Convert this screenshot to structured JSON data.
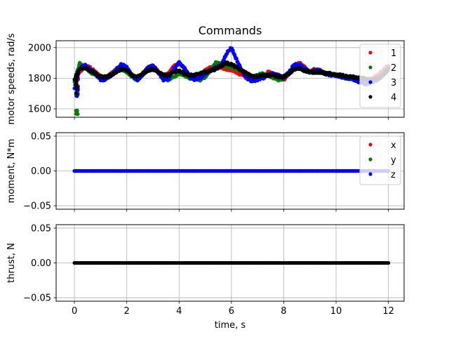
{
  "chart_data": {
    "title": "Commands",
    "x": [
      0,
      0.2,
      0.4,
      0.6,
      0.8,
      1.0,
      1.2,
      1.4,
      1.6,
      1.8,
      2.0,
      2.2,
      2.4,
      2.6,
      2.8,
      3.0,
      3.2,
      3.4,
      3.6,
      3.8,
      4.0,
      4.2,
      4.4,
      4.6,
      4.8,
      5.0,
      5.2,
      5.4,
      5.6,
      5.8,
      6.0,
      6.2,
      6.4,
      6.6,
      6.8,
      7.0,
      7.2,
      7.4,
      7.6,
      7.8,
      8.0,
      8.2,
      8.4,
      8.6,
      8.8,
      9.0,
      9.2,
      9.4,
      9.6,
      9.8,
      10.0,
      10.2,
      10.4,
      10.6,
      10.8,
      11.0,
      11.2,
      11.4,
      11.6,
      11.8,
      12.0
    ],
    "xlabel": "time, s",
    "xlim": [
      -0.7,
      12.6
    ],
    "xticks": [
      "0",
      "2",
      "4",
      "6",
      "8",
      "10",
      "12"
    ],
    "panels": [
      {
        "type": "scatter",
        "ylabel": "motor speeds, rad/s",
        "ylim": [
          1545,
          2045
        ],
        "yticks": [
          "1600",
          "1800",
          "2000"
        ],
        "legend_position": "upper right",
        "series": [
          {
            "name": "1",
            "color": "#ff0000",
            "values": [
              1790,
              1840,
              1880,
              1870,
              1840,
              1810,
              1805,
              1830,
              1860,
              1880,
              1860,
              1820,
              1800,
              1830,
              1870,
              1880,
              1850,
              1810,
              1830,
              1880,
              1900,
              1860,
              1810,
              1800,
              1820,
              1850,
              1870,
              1890,
              1870,
              1860,
              1850,
              1840,
              1820,
              1800,
              1790,
              1800,
              1820,
              1840,
              1830,
              1810,
              1790,
              1830,
              1880,
              1900,
              1870,
              1840,
              1860,
              1850,
              1830,
              1830,
              1820,
              1810,
              1800,
              1800,
              1790,
              1790,
              1790,
              1800,
              1820,
              1850,
              1880
            ]
          },
          {
            "name": "2",
            "color": "#008000",
            "values": [
              1780,
              1900,
              1870,
              1840,
              1820,
              1800,
              1800,
              1820,
              1850,
              1860,
              1840,
              1810,
              1790,
              1820,
              1860,
              1870,
              1840,
              1800,
              1790,
              1810,
              1830,
              1820,
              1800,
              1800,
              1790,
              1810,
              1850,
              1900,
              1890,
              1880,
              1870,
              1860,
              1850,
              1830,
              1810,
              1820,
              1830,
              1820,
              1800,
              1790,
              1800,
              1830,
              1860,
              1870,
              1850,
              1840,
              1840,
              1840,
              1830,
              1830,
              1820,
              1810,
              1800,
              1800,
              1790,
              1790,
              1780,
              1780,
              1790,
              1820,
              1860
            ]
          },
          {
            "name": "3",
            "color": "#0000ff",
            "values": [
              1740,
              1860,
              1890,
              1860,
              1830,
              1790,
              1790,
              1820,
              1860,
              1890,
              1870,
              1820,
              1790,
              1820,
              1870,
              1880,
              1840,
              1790,
              1800,
              1860,
              1900,
              1870,
              1810,
              1790,
              1800,
              1830,
              1850,
              1870,
              1880,
              1960,
              2000,
              1920,
              1850,
              1800,
              1780,
              1790,
              1800,
              1820,
              1830,
              1820,
              1800,
              1840,
              1890,
              1890,
              1860,
              1840,
              1850,
              1850,
              1830,
              1820,
              1820,
              1810,
              1800,
              1800,
              1780,
              1770,
              1760,
              1780,
              1800,
              1830,
              1870
            ]
          },
          {
            "name": "4",
            "color": "#000000",
            "values": [
              1790,
              1860,
              1870,
              1850,
              1830,
              1810,
              1810,
              1820,
              1840,
              1860,
              1850,
              1820,
              1810,
              1830,
              1850,
              1860,
              1840,
              1820,
              1820,
              1840,
              1850,
              1830,
              1820,
              1820,
              1830,
              1840,
              1850,
              1860,
              1880,
              1900,
              1890,
              1870,
              1850,
              1830,
              1810,
              1810,
              1820,
              1820,
              1820,
              1810,
              1810,
              1830,
              1860,
              1860,
              1850,
              1840,
              1840,
              1840,
              1830,
              1830,
              1820,
              1820,
              1810,
              1810,
              1800,
              1800,
              1790,
              1790,
              1800,
              1820,
              1860
            ]
          }
        ]
      },
      {
        "type": "scatter",
        "ylabel": "moment, N*m",
        "ylim": [
          -0.055,
          0.055
        ],
        "yticks": [
          "−0.05",
          "0.00",
          "0.05"
        ],
        "legend_position": "upper right",
        "series": [
          {
            "name": "x",
            "color": "#ff0000",
            "values": [
              0,
              0
            ]
          },
          {
            "name": "y",
            "color": "#008000",
            "values": [
              0,
              0
            ]
          },
          {
            "name": "z",
            "color": "#0000ff",
            "values": [
              0,
              0
            ]
          }
        ]
      },
      {
        "type": "scatter",
        "ylabel": "thrust, N",
        "ylim": [
          -0.055,
          0.055
        ],
        "yticks": [
          "−0.05",
          "0.00",
          "0.05"
        ],
        "series": [
          {
            "color": "#000000",
            "values": [
              0,
              0
            ]
          }
        ]
      }
    ]
  }
}
